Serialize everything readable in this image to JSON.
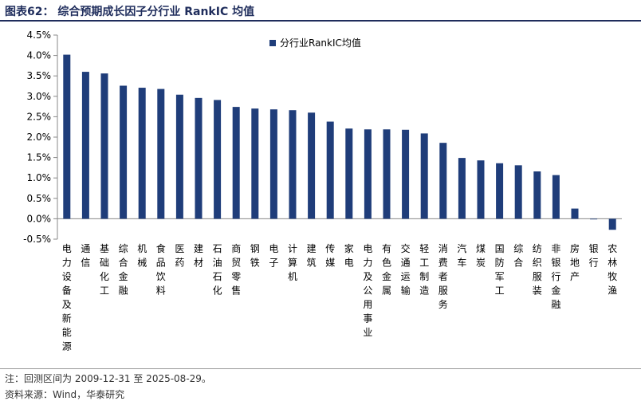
{
  "header": {
    "title": "图表62： 综合预期成长因子分行业 RankIC 均值"
  },
  "colors": {
    "bar": "#1f3d7a",
    "title": "#1f2d5c"
  },
  "chart_data": {
    "type": "bar",
    "categories": [
      "电力设备及新能源",
      "通信",
      "基础化工",
      "综合金融",
      "机械",
      "食品饮料",
      "医药",
      "建材",
      "石油石化",
      "商贸零售",
      "钢铁",
      "电子",
      "计算机",
      "建筑",
      "传媒",
      "家电",
      "电力及公用事业",
      "有色金属",
      "交通运输",
      "轻工制造",
      "消费者服务",
      "汽车",
      "煤炭",
      "国防军工",
      "综合",
      "纺织服装",
      "非银行金融",
      "房地产",
      "银行",
      "农林牧渔"
    ],
    "series": [
      {
        "name": "分行业RankIC均值",
        "values": [
          4.02,
          3.6,
          3.56,
          3.26,
          3.21,
          3.18,
          3.04,
          2.96,
          2.91,
          2.74,
          2.7,
          2.68,
          2.66,
          2.6,
          2.38,
          2.21,
          2.19,
          2.19,
          2.18,
          2.09,
          1.86,
          1.49,
          1.43,
          1.36,
          1.31,
          1.16,
          1.07,
          0.25,
          -0.01,
          -0.27
        ]
      }
    ],
    "yticks": [
      "4.5%",
      "4.0%",
      "3.5%",
      "3.0%",
      "2.5%",
      "2.0%",
      "1.5%",
      "1.0%",
      "0.5%",
      "0.0%",
      "-0.5%"
    ],
    "ylim": [
      -0.5,
      4.5
    ],
    "legend_position": "top",
    "grid": false
  },
  "footer": {
    "note": "注：回测区间为 2009-12-31 至 2025-08-29。",
    "source": "资料来源：Wind，华泰研究"
  }
}
